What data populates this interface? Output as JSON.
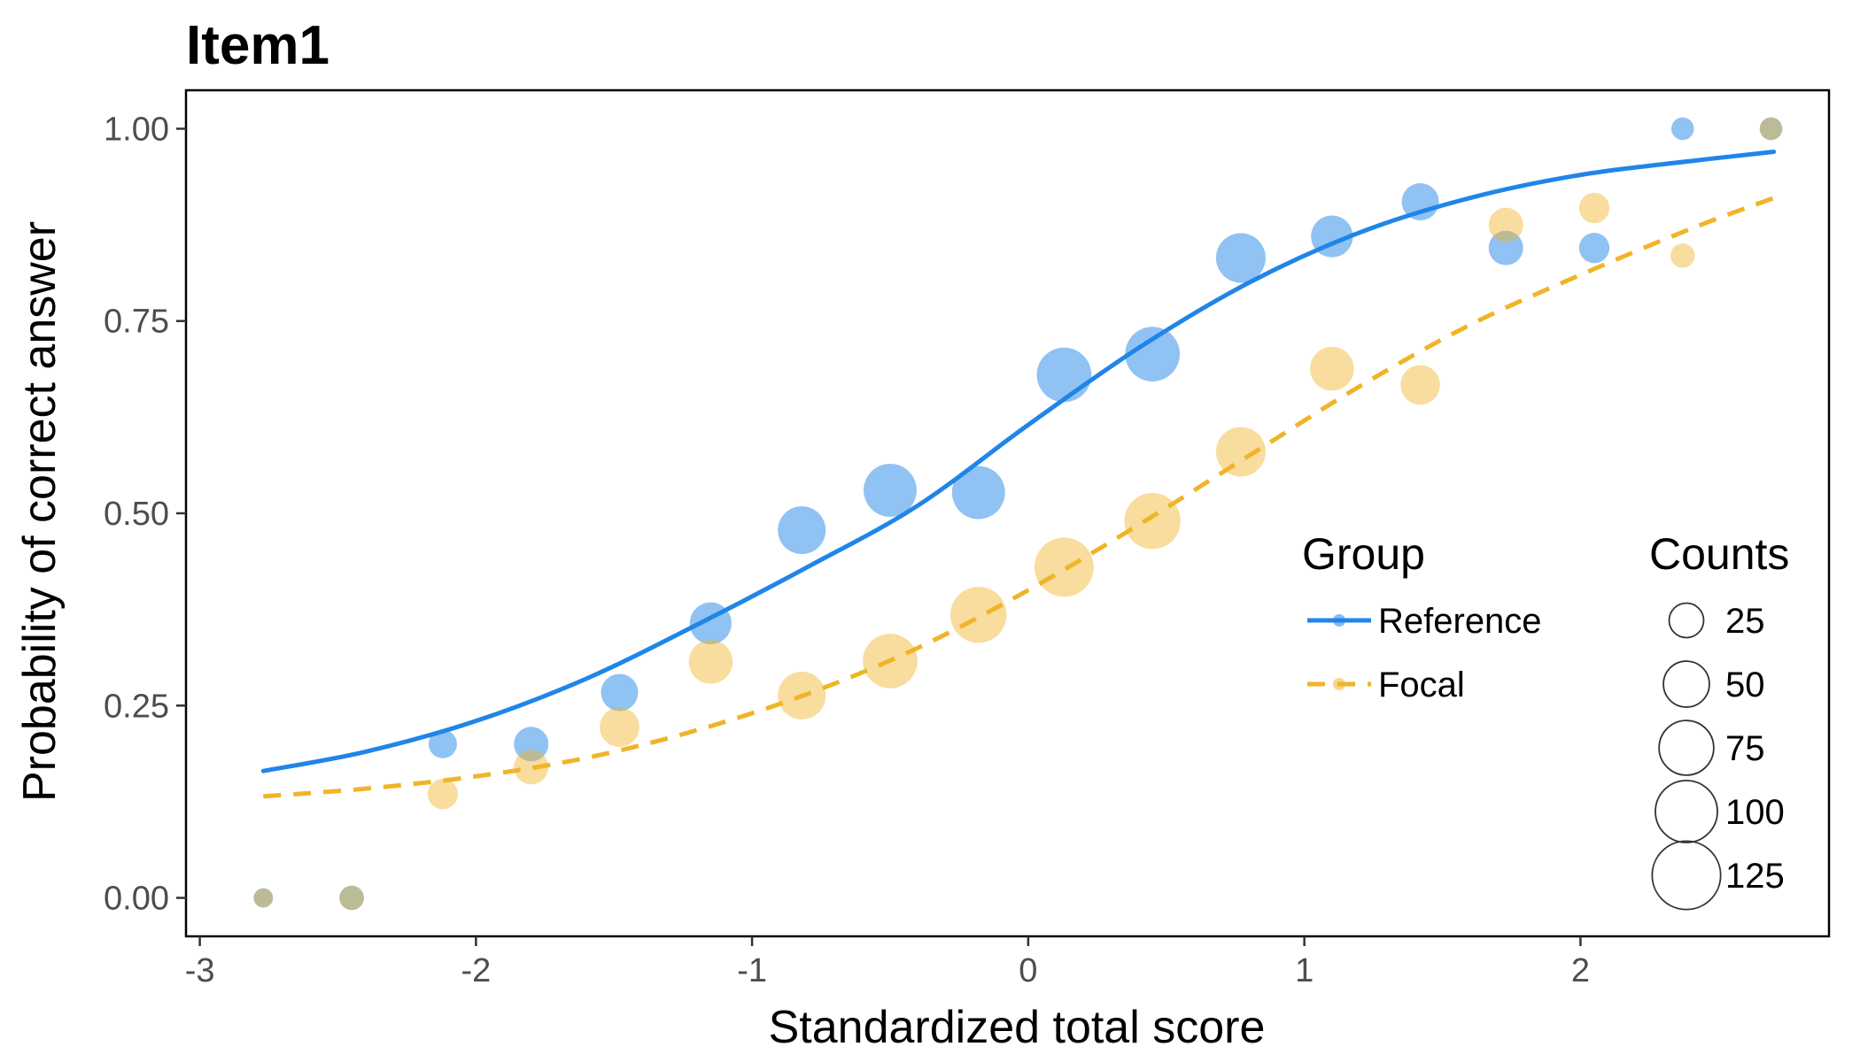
{
  "chart_data": {
    "type": "scatter",
    "title": "Item1",
    "xlabel": "Standardized total score",
    "ylabel": "Probability of correct answer",
    "xlim": [
      -3.05,
      2.9
    ],
    "ylim": [
      -0.05,
      1.05
    ],
    "x_ticks": [
      -3,
      -2,
      -1,
      0,
      1,
      2
    ],
    "x_tick_labels": [
      "-3",
      "-2",
      "-1",
      "0",
      "1",
      "2"
    ],
    "y_ticks": [
      0,
      0.25,
      0.5,
      0.75,
      1
    ],
    "y_tick_labels": [
      "0.00",
      "0.25",
      "0.50",
      "0.75",
      "1.00"
    ],
    "grid": false,
    "legend_placement": "bottom-right",
    "legend": {
      "group_title": "Group",
      "counts_title": "Counts",
      "count_levels": [
        25,
        50,
        75,
        100,
        125
      ],
      "count_labels": [
        "25",
        "50",
        "75",
        "100",
        "125"
      ]
    },
    "series": [
      {
        "name": "Reference",
        "color": "#2185e8",
        "linestyle": "solid",
        "curve": {
          "x": [
            -2.77,
            -2.4,
            -2.0,
            -1.6,
            -1.2,
            -0.8,
            -0.4,
            0.0,
            0.4,
            0.8,
            1.2,
            1.6,
            2.0,
            2.4,
            2.7
          ],
          "y": [
            0.165,
            0.19,
            0.23,
            0.285,
            0.355,
            0.43,
            0.51,
            0.615,
            0.715,
            0.8,
            0.865,
            0.91,
            0.94,
            0.958,
            0.97
          ]
        },
        "points": [
          {
            "x": -2.77,
            "y": 0.0,
            "count": 5
          },
          {
            "x": -2.45,
            "y": 0.0,
            "count": 10
          },
          {
            "x": -2.12,
            "y": 0.2,
            "count": 15
          },
          {
            "x": -1.8,
            "y": 0.2,
            "count": 25
          },
          {
            "x": -1.48,
            "y": 0.267,
            "count": 30
          },
          {
            "x": -1.15,
            "y": 0.357,
            "count": 40
          },
          {
            "x": -0.82,
            "y": 0.478,
            "count": 55
          },
          {
            "x": -0.5,
            "y": 0.53,
            "count": 70
          },
          {
            "x": -0.18,
            "y": 0.527,
            "count": 70
          },
          {
            "x": 0.13,
            "y": 0.68,
            "count": 75
          },
          {
            "x": 0.45,
            "y": 0.707,
            "count": 75
          },
          {
            "x": 0.77,
            "y": 0.832,
            "count": 60
          },
          {
            "x": 1.1,
            "y": 0.86,
            "count": 40
          },
          {
            "x": 1.42,
            "y": 0.905,
            "count": 30
          },
          {
            "x": 1.73,
            "y": 0.845,
            "count": 25
          },
          {
            "x": 2.05,
            "y": 0.845,
            "count": 18
          },
          {
            "x": 2.37,
            "y": 1.0,
            "count": 8
          },
          {
            "x": 2.69,
            "y": 1.0,
            "count": 8
          }
        ]
      },
      {
        "name": "Focal",
        "color": "#f0b428",
        "linestyle": "dashed",
        "curve": {
          "x": [
            -2.77,
            -2.4,
            -2.0,
            -1.6,
            -1.2,
            -0.8,
            -0.4,
            0.0,
            0.4,
            0.8,
            1.2,
            1.6,
            2.0,
            2.4,
            2.7
          ],
          "y": [
            0.132,
            0.142,
            0.158,
            0.182,
            0.218,
            0.265,
            0.325,
            0.4,
            0.485,
            0.575,
            0.665,
            0.745,
            0.81,
            0.87,
            0.91
          ]
        },
        "points": [
          {
            "x": -2.77,
            "y": 0.0,
            "count": 5
          },
          {
            "x": -2.45,
            "y": 0.0,
            "count": 10
          },
          {
            "x": -2.12,
            "y": 0.135,
            "count": 18
          },
          {
            "x": -1.8,
            "y": 0.17,
            "count": 25
          },
          {
            "x": -1.48,
            "y": 0.222,
            "count": 35
          },
          {
            "x": -1.15,
            "y": 0.307,
            "count": 45
          },
          {
            "x": -0.82,
            "y": 0.263,
            "count": 55
          },
          {
            "x": -0.5,
            "y": 0.308,
            "count": 75
          },
          {
            "x": -0.18,
            "y": 0.368,
            "count": 80
          },
          {
            "x": 0.13,
            "y": 0.43,
            "count": 90
          },
          {
            "x": 0.45,
            "y": 0.49,
            "count": 80
          },
          {
            "x": 0.77,
            "y": 0.58,
            "count": 60
          },
          {
            "x": 1.1,
            "y": 0.688,
            "count": 45
          },
          {
            "x": 1.42,
            "y": 0.667,
            "count": 35
          },
          {
            "x": 1.73,
            "y": 0.875,
            "count": 25
          },
          {
            "x": 2.05,
            "y": 0.897,
            "count": 18
          },
          {
            "x": 2.37,
            "y": 0.835,
            "count": 10
          },
          {
            "x": 2.69,
            "y": 1.0,
            "count": 8
          }
        ]
      }
    ]
  }
}
